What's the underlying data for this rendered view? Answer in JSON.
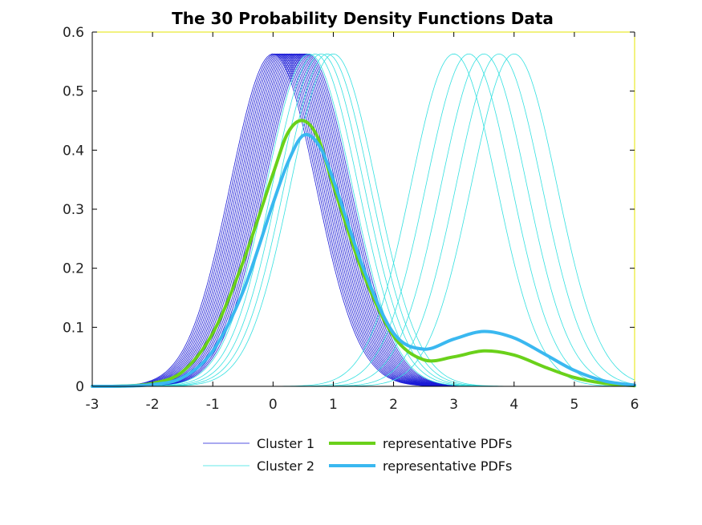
{
  "chart_data": {
    "type": "line",
    "title": "The 30 Probability Density Functions Data",
    "xlabel": "",
    "ylabel": "",
    "xlim": [
      -3,
      6
    ],
    "ylim": [
      0,
      0.6
    ],
    "x_ticks": [
      "-3",
      "-2",
      "-1",
      "0",
      "1",
      "2",
      "3",
      "4",
      "5",
      "6"
    ],
    "y_ticks": [
      "0",
      "0.1",
      "0.2",
      "0.3",
      "0.4",
      "0.5",
      "0.6"
    ],
    "grid": false,
    "legend_position": "bottom",
    "colors": {
      "cluster1": "#1a1ad6",
      "cluster2": "#33e0e0",
      "rep1": "#6ad11a",
      "rep2": "#3ab8f0",
      "axis": "#000000",
      "frame_right": "#e6e600"
    },
    "series": [
      {
        "name": "Cluster 1",
        "kind": "family",
        "peak": 0.563,
        "sigma": 0.71,
        "means": [
          0.0,
          0.03,
          0.06,
          0.09,
          0.12,
          0.15,
          0.18,
          0.21,
          0.24,
          0.27,
          0.3,
          0.33,
          0.36,
          0.39,
          0.42,
          0.45,
          0.48,
          0.51,
          0.54,
          0.57
        ]
      },
      {
        "name": "Cluster 2",
        "kind": "family",
        "peak": 0.563,
        "sigma": 0.71,
        "means": [
          0.6,
          0.7,
          0.8,
          0.9,
          1.0,
          3.0,
          3.25,
          3.5,
          3.75,
          4.0
        ]
      },
      {
        "name": "representative PDFs",
        "kind": "representative",
        "points": [
          [
            -3,
            0
          ],
          [
            -2.5,
            0.0005
          ],
          [
            -2,
            0.005
          ],
          [
            -1.5,
            0.025
          ],
          [
            -1,
            0.09
          ],
          [
            -0.5,
            0.21
          ],
          [
            0,
            0.36
          ],
          [
            0.25,
            0.43
          ],
          [
            0.5,
            0.45
          ],
          [
            0.75,
            0.42
          ],
          [
            1,
            0.34
          ],
          [
            1.5,
            0.19
          ],
          [
            2,
            0.085
          ],
          [
            2.5,
            0.045
          ],
          [
            3,
            0.05
          ],
          [
            3.5,
            0.06
          ],
          [
            4,
            0.053
          ],
          [
            4.5,
            0.033
          ],
          [
            5,
            0.015
          ],
          [
            5.5,
            0.005
          ],
          [
            6,
            0.001
          ]
        ]
      },
      {
        "name": "representative PDFs",
        "kind": "representative",
        "points": [
          [
            -3,
            0
          ],
          [
            -2.5,
            0.0003
          ],
          [
            -2,
            0.003
          ],
          [
            -1.5,
            0.015
          ],
          [
            -1,
            0.06
          ],
          [
            -0.5,
            0.16
          ],
          [
            0,
            0.31
          ],
          [
            0.25,
            0.38
          ],
          [
            0.5,
            0.425
          ],
          [
            0.75,
            0.41
          ],
          [
            1,
            0.35
          ],
          [
            1.5,
            0.2
          ],
          [
            2,
            0.09
          ],
          [
            2.5,
            0.063
          ],
          [
            3,
            0.08
          ],
          [
            3.5,
            0.093
          ],
          [
            4,
            0.082
          ],
          [
            4.5,
            0.055
          ],
          [
            5,
            0.027
          ],
          [
            5.5,
            0.009
          ],
          [
            6,
            0.002
          ]
        ]
      }
    ],
    "legend": [
      {
        "label": "Cluster 1",
        "series": 0
      },
      {
        "label": "representative PDFs",
        "series": 2
      },
      {
        "label": "Cluster 2",
        "series": 1
      },
      {
        "label": "representative PDFs",
        "series": 3
      }
    ]
  }
}
